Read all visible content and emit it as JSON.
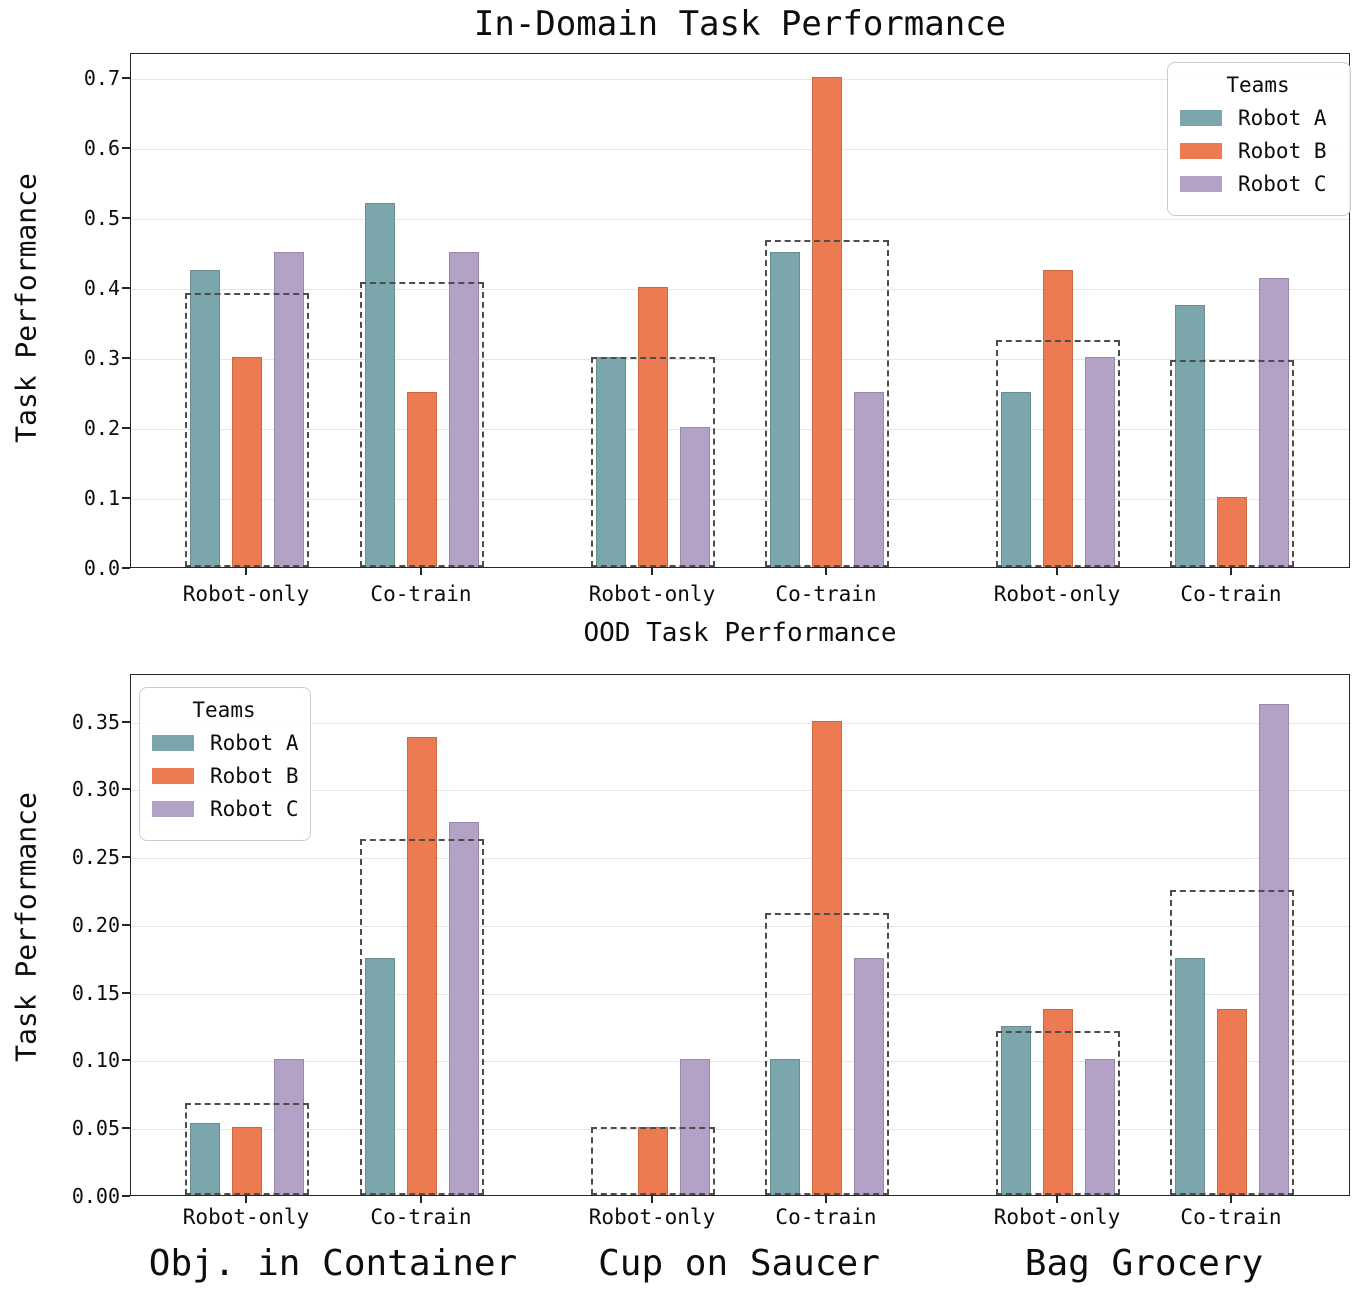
{
  "x_axis": {
    "condition_labels": [
      "Robot-only",
      "Co-train"
    ],
    "task_labels": [
      "Obj. in Container",
      "Cup on Saucer",
      "Bag Grocery"
    ]
  },
  "palette": {
    "robot_a": "#7BA7AC",
    "robot_b": "#ED7B51",
    "robot_c": "#B4A2C6",
    "mean_box_outline": "#4D4D4D"
  },
  "chart_data": [
    {
      "type": "bar",
      "title": "In-Domain Task Performance",
      "ylabel": "Task Performance",
      "ylim": [
        0,
        0.736
      ],
      "yticks": [
        "0.0",
        "0.1",
        "0.2",
        "0.3",
        "0.4",
        "0.5",
        "0.6",
        "0.7"
      ],
      "grid": true,
      "legend": {
        "title": "Teams",
        "position": "upper right",
        "entries": [
          "Robot A",
          "Robot B",
          "Robot C"
        ]
      },
      "series": [
        "Robot A",
        "Robot B",
        "Robot C"
      ],
      "colors": [
        "#7BA7AC",
        "#ED7B51",
        "#B4A2C6"
      ],
      "groups": [
        {
          "task": "Obj. in Container",
          "condition": "Robot-only",
          "values": [
            0.425,
            0.3,
            0.45
          ],
          "mean": 0.3917
        },
        {
          "task": "Obj. in Container",
          "condition": "Co-train",
          "values": [
            0.52,
            0.25,
            0.45
          ],
          "mean": 0.4067
        },
        {
          "task": "Cup on Saucer",
          "condition": "Robot-only",
          "values": [
            0.3,
            0.4,
            0.2
          ],
          "mean": 0.3
        },
        {
          "task": "Cup on Saucer",
          "condition": "Co-train",
          "values": [
            0.45,
            0.7,
            0.25
          ],
          "mean": 0.4667
        },
        {
          "task": "Bag Grocery",
          "condition": "Robot-only",
          "values": [
            0.25,
            0.425,
            0.3
          ],
          "mean": 0.325
        },
        {
          "task": "Bag Grocery",
          "condition": "Co-train",
          "values": [
            0.375,
            0.1,
            0.4125
          ],
          "mean": 0.2958
        }
      ]
    },
    {
      "type": "bar",
      "title": "OOD Task Performance",
      "ylabel": "Task Performance",
      "ylim": [
        0,
        0.385
      ],
      "yticks": [
        "0.00",
        "0.05",
        "0.10",
        "0.15",
        "0.20",
        "0.25",
        "0.30",
        "0.35"
      ],
      "grid": true,
      "legend": {
        "title": "Teams",
        "position": "upper left",
        "entries": [
          "Robot A",
          "Robot B",
          "Robot C"
        ]
      },
      "series": [
        "Robot A",
        "Robot B",
        "Robot C"
      ],
      "colors": [
        "#7BA7AC",
        "#ED7B51",
        "#B4A2C6"
      ],
      "groups": [
        {
          "task": "Obj. in Container",
          "condition": "Robot-only",
          "values": [
            0.0535,
            0.05,
            0.1
          ],
          "mean": 0.0678
        },
        {
          "task": "Obj. in Container",
          "condition": "Co-train",
          "values": [
            0.175,
            0.3375,
            0.275
          ],
          "mean": 0.2625
        },
        {
          "task": "Cup on Saucer",
          "condition": "Robot-only",
          "values": [
            0.0,
            0.05,
            0.1
          ],
          "mean": 0.05
        },
        {
          "task": "Cup on Saucer",
          "condition": "Co-train",
          "values": [
            0.1,
            0.35,
            0.175
          ],
          "mean": 0.2083
        },
        {
          "task": "Bag Grocery",
          "condition": "Robot-only",
          "values": [
            0.125,
            0.1375,
            0.1
          ],
          "mean": 0.1208
        },
        {
          "task": "Bag Grocery",
          "condition": "Co-train",
          "values": [
            0.175,
            0.1375,
            0.3625
          ],
          "mean": 0.225
        }
      ]
    }
  ]
}
